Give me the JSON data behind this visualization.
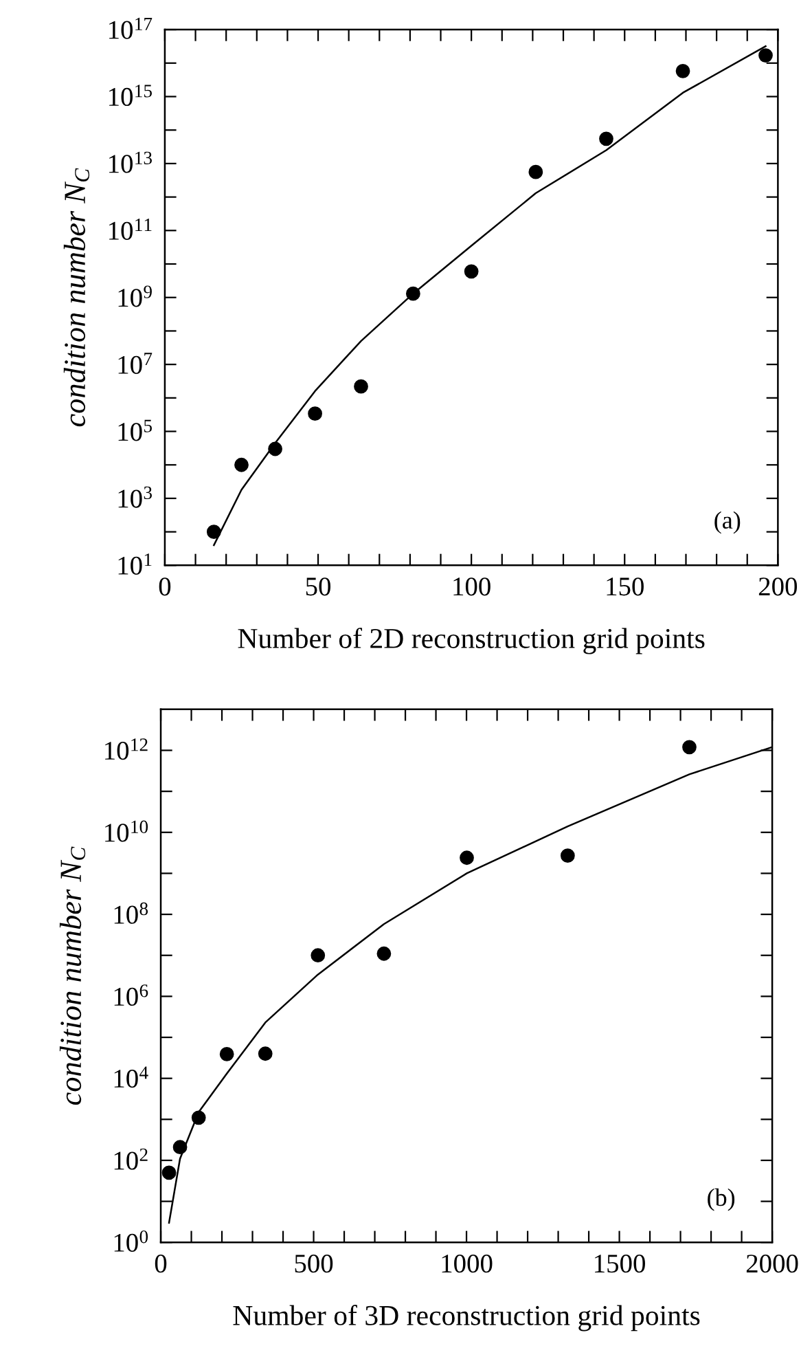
{
  "chart_data": [
    {
      "type": "scatter",
      "xlabel": "Number of 2D reconstruction grid points",
      "ylabel": "condition number N$_{C}$",
      "log": "y",
      "marker": "circle",
      "grid": false,
      "annotations": [
        "(a)"
      ],
      "xlim": [
        0,
        200
      ],
      "xticks": [
        0,
        {
          "value": 10,
          "label": null
        },
        {
          "value": 20,
          "label": null
        },
        {
          "value": 30,
          "label": null
        },
        {
          "value": 40,
          "label": null
        },
        50,
        {
          "value": 60,
          "label": null
        },
        {
          "value": 70,
          "label": null
        },
        {
          "value": 80,
          "label": null
        },
        {
          "value": 90,
          "label": null
        },
        100,
        {
          "value": 110,
          "label": null
        },
        {
          "value": 120,
          "label": null
        },
        {
          "value": 130,
          "label": null
        },
        {
          "value": 140,
          "label": null
        },
        150,
        {
          "value": 160,
          "label": null
        },
        {
          "value": 170,
          "label": null
        },
        {
          "value": 180,
          "label": null
        },
        {
          "value": 190,
          "label": null
        },
        200
      ],
      "ylim": [
        10,
        1e+17
      ],
      "yticks": [
        {
          "value": 10,
          "label": "10$^{1}$"
        },
        {
          "value": 100,
          "label": null
        },
        {
          "value": 1000,
          "label": "10$^{3}$"
        },
        {
          "value": 10000.0,
          "label": null
        },
        {
          "value": 100000.0,
          "label": "10$^{5}$"
        },
        {
          "value": 1000000.0,
          "label": null
        },
        {
          "value": 10000000.0,
          "label": "10$^{7}$"
        },
        {
          "value": 100000000.0,
          "label": null
        },
        {
          "value": 1000000000.0,
          "label": "10$^{9}$"
        },
        {
          "value": 10000000000.0,
          "label": null
        },
        {
          "value": 100000000000.0,
          "label": "10$^{11}$"
        },
        {
          "value": 1000000000000.0,
          "label": null
        },
        {
          "value": 10000000000000.0,
          "label": "10$^{13}$"
        },
        {
          "value": 100000000000000.0,
          "label": null
        },
        {
          "value": 1000000000000000.0,
          "label": "10$^{15}$"
        },
        {
          "value": 1e+16,
          "label": null
        },
        {
          "value": 1e+17,
          "label": "10$^{17}$"
        }
      ],
      "series": [
        {
          "color": "#000000",
          "x": [
            16,
            25,
            36,
            49,
            64,
            81,
            100,
            121,
            144,
            169,
            196
          ],
          "values": [
            100,
            10000.0,
            30000.0,
            340000.0,
            2200000.0,
            1300000000.0,
            6000000000.0,
            5600000000000.0,
            55000000000000.0,
            5800000000000000.0,
            1.7e+16
          ]
        },
        {
          "type": "line",
          "color": "#000000",
          "marker": "none",
          "x": [
            16,
            25,
            36,
            49,
            64,
            81,
            100,
            121,
            144,
            169,
            196
          ],
          "values": [
            40,
            1800.0,
            45000.0,
            1600000.0,
            50000000.0,
            1300000000.0,
            35000000000.0,
            1300000000000.0,
            25000000000000.0,
            1300000000000000.0,
            3.2e+16
          ]
        }
      ]
    },
    {
      "type": "scatter",
      "xlabel": "Number of 3D reconstruction grid points",
      "ylabel": "condition number N$_{C}$",
      "log": "y",
      "marker": "circle",
      "grid": false,
      "annotations": [
        "(b)"
      ],
      "xlim": [
        0,
        2000
      ],
      "xticks": [
        0,
        {
          "value": 100,
          "label": null
        },
        {
          "value": 200,
          "label": null
        },
        {
          "value": 300,
          "label": null
        },
        {
          "value": 400,
          "label": null
        },
        500,
        {
          "value": 600,
          "label": null
        },
        {
          "value": 700,
          "label": null
        },
        {
          "value": 800,
          "label": null
        },
        {
          "value": 900,
          "label": null
        },
        1000,
        {
          "value": 1100,
          "label": null
        },
        {
          "value": 1200,
          "label": null
        },
        {
          "value": 1300,
          "label": null
        },
        {
          "value": 1400,
          "label": null
        },
        1500,
        {
          "value": 1600,
          "label": null
        },
        {
          "value": 1700,
          "label": null
        },
        {
          "value": 1800,
          "label": null
        },
        {
          "value": 1900,
          "label": null
        },
        2000
      ],
      "ylim": [
        1,
        10000000000000.0
      ],
      "yticks": [
        {
          "value": 1,
          "label": "10$^{0}$"
        },
        {
          "value": 10,
          "label": null
        },
        {
          "value": 100,
          "label": "10$^{2}$"
        },
        {
          "value": 1000,
          "label": null
        },
        {
          "value": 10000.0,
          "label": "10$^{4}$"
        },
        {
          "value": 100000.0,
          "label": null
        },
        {
          "value": 1000000.0,
          "label": "10$^{6}$"
        },
        {
          "value": 10000000.0,
          "label": null
        },
        {
          "value": 100000000.0,
          "label": "10$^{8}$"
        },
        {
          "value": 1000000000.0,
          "label": null
        },
        {
          "value": 10000000000.0,
          "label": "10$^{10}$"
        },
        {
          "value": 100000000000.0,
          "label": null
        },
        {
          "value": 1000000000000.0,
          "label": "10$^{12}$"
        }
      ],
      "series": [
        {
          "color": "#000000",
          "x": [
            27,
            63,
            124,
            216,
            342,
            514,
            730,
            1001,
            1331,
            1729
          ],
          "values": [
            50,
            210,
            1100.0,
            39000.0,
            40000.0,
            10000000.0,
            11000000.0,
            2400000000.0,
            2700000000.0,
            1200000000000.0
          ]
        },
        {
          "type": "line",
          "color": "#000000",
          "marker": "none",
          "x": [
            27,
            63,
            124,
            216,
            342,
            514,
            730,
            1001,
            1331,
            1729,
            2000
          ],
          "values": [
            3,
            110,
            1500.0,
            13000.0,
            230000.0,
            3400000.0,
            58000000.0,
            1000000000.0,
            14000000000.0,
            260000000000.0,
            1200000000000.0
          ]
        }
      ]
    }
  ]
}
